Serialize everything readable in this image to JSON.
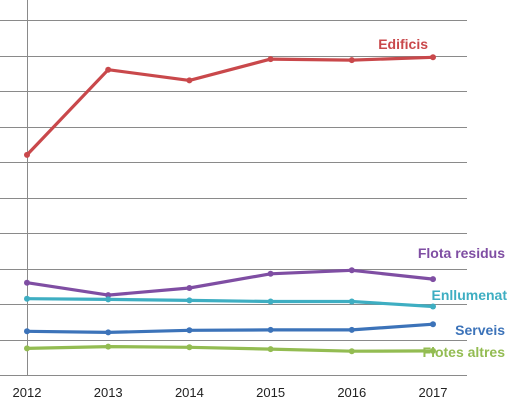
{
  "chart_data": {
    "type": "line",
    "x": [
      "2012",
      "2013",
      "2014",
      "2015",
      "2016",
      "2017"
    ],
    "ylim": [
      0,
      100
    ],
    "grid": true,
    "legend": "labels at line ends",
    "series": [
      {
        "name": "Edificis",
        "color": "#c9484b",
        "values": [
          62.0,
          86.0,
          83.0,
          89.0,
          88.7,
          89.5
        ]
      },
      {
        "name": "Flota residus",
        "color": "#7f4ea3",
        "values": [
          26.0,
          22.5,
          24.5,
          28.5,
          29.5,
          27.0
        ]
      },
      {
        "name": "Enllumenat",
        "color": "#3eaec2",
        "values": [
          21.5,
          21.3,
          21.0,
          20.7,
          20.7,
          19.3
        ]
      },
      {
        "name": "Serveis",
        "color": "#3c73b9",
        "values": [
          12.3,
          12.0,
          12.6,
          12.7,
          12.7,
          14.3
        ]
      },
      {
        "name": "Flotes altres",
        "color": "#93bc52",
        "values": [
          7.5,
          8.0,
          7.8,
          7.3,
          6.7,
          6.8
        ]
      }
    ]
  }
}
